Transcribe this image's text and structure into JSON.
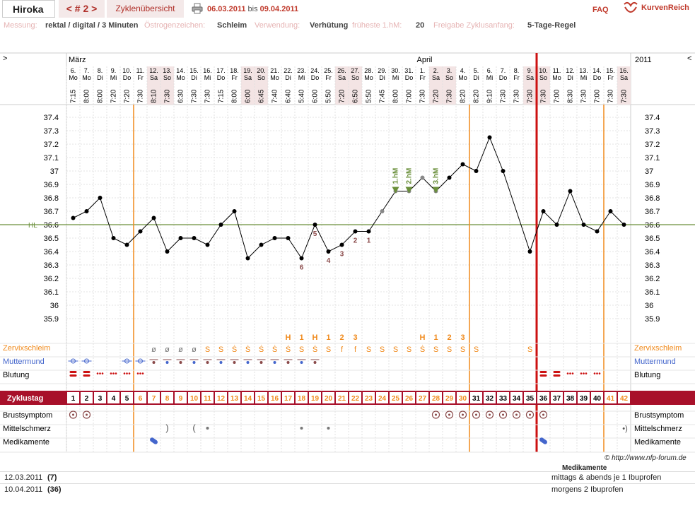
{
  "header": {
    "user": "Hiroka",
    "cycle_nav": "< # 2 >",
    "overview_tab": "Zyklenübersicht",
    "date_from": "06.03.2011",
    "date_sep": "bis",
    "date_to": "09.04.2011",
    "faq": "FAQ",
    "logo": "KurvenReich"
  },
  "meta": {
    "messung_label": "Messung:",
    "messung_value": "rektal / digital / 3 Minuten",
    "oestrogen_label": "Östrogenzeichen:",
    "oestrogen_value": "Schleim",
    "verwendung_label": "Verwendung:",
    "verwendung_value": "Verhütung",
    "fh_label": "früheste 1.hM:",
    "fh_value": "20",
    "freigabe_label": "Freigabe Zyklusanfang:",
    "freigabe_value": "5-Tage-Regel"
  },
  "nav": {
    "left": ">",
    "right": "<",
    "year": "2011",
    "month1": "März",
    "month2": "April"
  },
  "days": [
    {
      "d": "6.",
      "w": "Mo",
      "t": "7:15",
      "we": false
    },
    {
      "d": "7.",
      "w": "Mo",
      "t": "8:00",
      "we": false
    },
    {
      "d": "8.",
      "w": "Di",
      "t": "8:00",
      "we": false
    },
    {
      "d": "9.",
      "w": "Mi",
      "t": "7:20",
      "we": false
    },
    {
      "d": "10.",
      "w": "Do",
      "t": "7:20",
      "we": false
    },
    {
      "d": "11.",
      "w": "Fr",
      "t": "7:30",
      "we": false
    },
    {
      "d": "12.",
      "w": "Sa",
      "t": "8:10",
      "we": true
    },
    {
      "d": "13.",
      "w": "So",
      "t": "7:30",
      "we": true
    },
    {
      "d": "14.",
      "w": "Mo",
      "t": "6:30",
      "we": false
    },
    {
      "d": "15.",
      "w": "Di",
      "t": "7:30",
      "we": false
    },
    {
      "d": "16.",
      "w": "Mi",
      "t": "7:30",
      "we": false
    },
    {
      "d": "17.",
      "w": "Do",
      "t": "7:15",
      "we": false
    },
    {
      "d": "18.",
      "w": "Fr",
      "t": "8:00",
      "we": false
    },
    {
      "d": "19.",
      "w": "Sa",
      "t": "6:00",
      "we": true
    },
    {
      "d": "20.",
      "w": "So",
      "t": "6:45",
      "we": true
    },
    {
      "d": "21.",
      "w": "Mo",
      "t": "7:40",
      "we": false
    },
    {
      "d": "22.",
      "w": "Di",
      "t": "6:40",
      "we": false
    },
    {
      "d": "23.",
      "w": "Mi",
      "t": "5:40",
      "we": false
    },
    {
      "d": "24.",
      "w": "Do",
      "t": "6:00",
      "we": false
    },
    {
      "d": "25.",
      "w": "Fr",
      "t": "5:50",
      "we": false
    },
    {
      "d": "26.",
      "w": "Sa",
      "t": "7:20",
      "we": true
    },
    {
      "d": "27.",
      "w": "So",
      "t": "6:50",
      "we": true
    },
    {
      "d": "28.",
      "w": "Mo",
      "t": "5:50",
      "we": false
    },
    {
      "d": "29.",
      "w": "Di",
      "t": "7:45",
      "we": false
    },
    {
      "d": "30.",
      "w": "Mi",
      "t": "8:00",
      "we": false
    },
    {
      "d": "31.",
      "w": "Do",
      "t": "7:00",
      "we": false
    },
    {
      "d": "1.",
      "w": "Fr",
      "t": "7:30",
      "we": false
    },
    {
      "d": "2.",
      "w": "Sa",
      "t": "7:20",
      "we": true
    },
    {
      "d": "3.",
      "w": "So",
      "t": "7:30",
      "we": true
    },
    {
      "d": "4.",
      "w": "Mo",
      "t": "8:20",
      "we": false
    },
    {
      "d": "5.",
      "w": "Di",
      "t": "8:20",
      "we": false
    },
    {
      "d": "6.",
      "w": "Mi",
      "t": "9:10",
      "we": false
    },
    {
      "d": "7.",
      "w": "Do",
      "t": "7:30",
      "we": false
    },
    {
      "d": "8.",
      "w": "Fr",
      "t": "7:30",
      "we": false
    },
    {
      "d": "9.",
      "w": "Sa",
      "t": "7:30",
      "we": true
    },
    {
      "d": "10.",
      "w": "So",
      "t": "7:30",
      "we": true
    },
    {
      "d": "11.",
      "w": "Mo",
      "t": "7:00",
      "we": false
    },
    {
      "d": "12.",
      "w": "Di",
      "t": "8:30",
      "we": false
    },
    {
      "d": "13.",
      "w": "Mi",
      "t": "7:30",
      "we": false
    },
    {
      "d": "14.",
      "w": "Do",
      "t": "7:00",
      "we": false
    },
    {
      "d": "15.",
      "w": "Fr",
      "t": "7:30",
      "we": false
    },
    {
      "d": "16.",
      "w": "Sa",
      "t": "7:30",
      "we": true
    }
  ],
  "chart_data": {
    "type": "line",
    "hl_label": "HL",
    "hl_value": 36.6,
    "ylim": [
      35.9,
      37.4
    ],
    "yticks": [
      "37.4",
      "37.3",
      "37.2",
      "37.1",
      "37",
      "36.9",
      "36.8",
      "36.7",
      "36.6",
      "36.5",
      "36.4",
      "36.3",
      "36.2",
      "36.1",
      "36",
      "35.9"
    ],
    "x": [
      1,
      2,
      3,
      4,
      5,
      6,
      7,
      8,
      9,
      10,
      11,
      12,
      13,
      14,
      15,
      16,
      17,
      18,
      19,
      20,
      21,
      22,
      23,
      24,
      25,
      26,
      27,
      28,
      29,
      30,
      31,
      32,
      33,
      34,
      35,
      36,
      37,
      38,
      39,
      40,
      41,
      42
    ],
    "temps": [
      36.65,
      36.7,
      36.8,
      36.5,
      36.45,
      36.55,
      36.65,
      36.4,
      36.5,
      36.5,
      36.45,
      36.6,
      36.7,
      36.35,
      36.45,
      36.5,
      36.5,
      36.35,
      36.6,
      36.4,
      36.45,
      36.55,
      36.55,
      36.7,
      36.85,
      36.85,
      36.95,
      36.85,
      36.95,
      37.05,
      37.0,
      37.25,
      37.0,
      null,
      36.4,
      36.7,
      36.6,
      36.85,
      36.6,
      36.55,
      36.7,
      36.6
    ],
    "marks": [
      {
        "x": 18,
        "label": "6"
      },
      {
        "x": 19,
        "label": "5"
      },
      {
        "x": 20,
        "label": "4"
      },
      {
        "x": 21,
        "label": "3"
      },
      {
        "x": 22,
        "label": "2"
      },
      {
        "x": 23,
        "label": "1"
      },
      {
        "x": 25,
        "label": "1.hM"
      },
      {
        "x": 26,
        "label": "2.hM"
      },
      {
        "x": 28,
        "label": "3.hM"
      }
    ]
  },
  "rows": {
    "zervix_label": "Zervixschleim",
    "muttermund_label": "Muttermund",
    "blutung_label": "Blutung",
    "zyklustag_label": "Zyklustag",
    "brust_label": "Brustsymptom",
    "mittel_label": "Mittelschmerz",
    "medi_label": "Medikamente",
    "peak_marks": [
      {
        "x": 17,
        "t": "H"
      },
      {
        "x": 18,
        "t": "1"
      },
      {
        "x": 19,
        "t": "H"
      },
      {
        "x": 20,
        "t": "1"
      },
      {
        "x": 21,
        "t": "2"
      },
      {
        "x": 22,
        "t": "3"
      },
      {
        "x": 27,
        "t": "H"
      },
      {
        "x": 28,
        "t": "1"
      },
      {
        "x": 29,
        "t": "2"
      },
      {
        "x": 30,
        "t": "3"
      }
    ],
    "zervix": [
      "",
      "",
      "",
      "",
      "",
      "",
      "ø",
      "ø",
      "ø",
      "ø",
      "S",
      "S",
      "Ṡ",
      "Ṡ",
      "Ṡ",
      "Ṡ",
      "Ṡ",
      "S",
      "Ṡ",
      "S",
      "f",
      "f",
      "S",
      "S",
      "S",
      "S",
      "Ṡ",
      "S",
      "S",
      "S",
      "S",
      "",
      "",
      "",
      "S",
      "",
      "",
      "",
      "",
      "",
      "",
      ""
    ],
    "cycle_days": [
      "1",
      "2",
      "3",
      "4",
      "5",
      "6",
      "7",
      "8",
      "9",
      "10",
      "11",
      "12",
      "13",
      "14",
      "15",
      "16",
      "17",
      "18",
      "19",
      "20",
      "21",
      "22",
      "23",
      "24",
      "25",
      "26",
      "27",
      "28",
      "29",
      "30",
      "31",
      "32",
      "33",
      "34",
      "35",
      "36",
      "37",
      "38",
      "39",
      "40",
      "41",
      "42"
    ]
  },
  "footer": {
    "copyright": "© http://www.nfp-forum.de",
    "medi_header": "Medikamente",
    "entries": [
      {
        "date": "12.03.2011",
        "num": "(7)",
        "text": "mittags & abends je 1 Ibuprofen"
      },
      {
        "date": "10.04.2011",
        "num": "(36)",
        "text": "morgens 2 Ibuprofen"
      }
    ]
  },
  "colors": {
    "accent": "#b0302a",
    "orange": "#f08a1c",
    "green": "#6a8f3a",
    "blue": "#4466cc",
    "cyclebar": "#a8102a"
  }
}
